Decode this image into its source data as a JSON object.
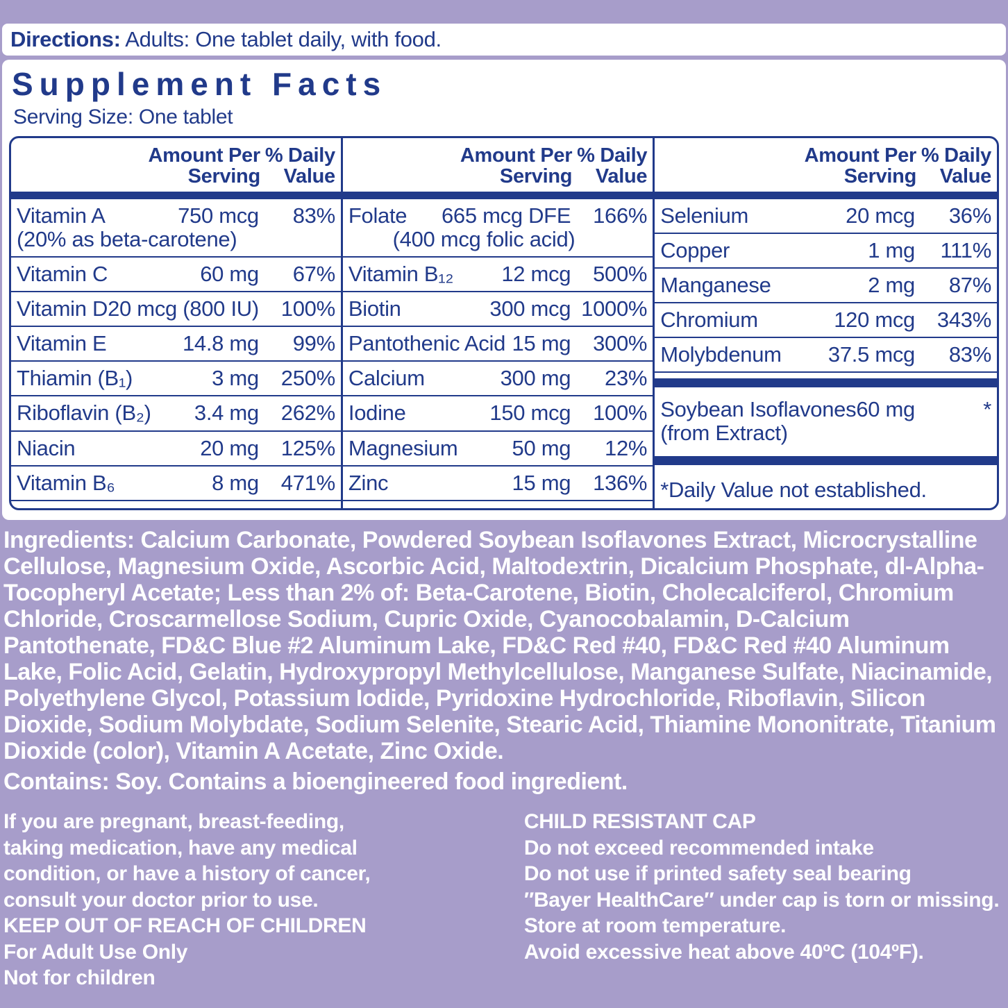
{
  "colors": {
    "background": "#a79dca",
    "panel": "#ffffff",
    "ink": "#213a8a",
    "text_on_purple": "#ffffff"
  },
  "directions": {
    "label": "Directions:",
    "text": " Adults: One tablet daily, with food."
  },
  "facts": {
    "title": "Supplement Facts",
    "serving_size": "Serving Size: One tablet",
    "col_header_amount": "Amount Per\nServing",
    "col_header_dv": "% Daily\nValue",
    "columns": [
      {
        "rows": [
          {
            "name": "Vitamin A",
            "name2": "(20% as beta-carotene)",
            "amount": "750 mcg",
            "dv": "83%"
          },
          {
            "name": "Vitamin C",
            "amount": "60 mg",
            "dv": "67%"
          },
          {
            "name": "Vitamin D",
            "amount": "20 mcg (800 IU)",
            "dv": "100%"
          },
          {
            "name": "Vitamin E",
            "amount": "14.8 mg",
            "dv": "99%"
          },
          {
            "name": "Thiamin (B₁)",
            "amount": "3 mg",
            "dv": "250%"
          },
          {
            "name": "Riboflavin (B₂)",
            "amount": "3.4 mg",
            "dv": "262%"
          },
          {
            "name": "Niacin",
            "amount": "20 mg",
            "dv": "125%"
          },
          {
            "name": "Vitamin B₆",
            "amount": "8 mg",
            "dv": "471%"
          }
        ]
      },
      {
        "rows": [
          {
            "name": "Folate",
            "amount": "665 mcg DFE",
            "amount2": "(400 mcg folic acid)",
            "dv": "166%"
          },
          {
            "name": "Vitamin B₁₂",
            "amount": "12 mcg",
            "dv": "500%"
          },
          {
            "name": "Biotin",
            "amount": "300 mcg",
            "dv": "1000%"
          },
          {
            "name": "Pantothenic Acid",
            "amount": "15 mg",
            "dv": "300%"
          },
          {
            "name": "Calcium",
            "amount": "300 mg",
            "dv": "23%"
          },
          {
            "name": "Iodine",
            "amount": "150 mcg",
            "dv": "100%"
          },
          {
            "name": "Magnesium",
            "amount": "50 mg",
            "dv": "12%"
          },
          {
            "name": "Zinc",
            "amount": "15 mg",
            "dv": "136%"
          }
        ]
      },
      {
        "rows": [
          {
            "name": "Selenium",
            "amount": "20 mcg",
            "dv": "36%"
          },
          {
            "name": "Copper",
            "amount": "1 mg",
            "dv": "111%"
          },
          {
            "name": "Manganese",
            "amount": "2 mg",
            "dv": "87%"
          },
          {
            "name": "Chromium",
            "amount": "120 mcg",
            "dv": "343%"
          },
          {
            "name": "Molybdenum",
            "amount": "37.5 mcg",
            "dv": "83%"
          }
        ],
        "special_row": {
          "name": "Soybean Isoflavones",
          "name2": "(from Extract)",
          "amount": "60 mg",
          "dv": "*"
        },
        "footnote": "*Daily Value not established."
      }
    ]
  },
  "ingredients": {
    "label": "Ingredients:",
    "text": " Calcium Carbonate, Powdered Soybean Isoflavones Extract, Microcrystalline Cellulose, Magnesium Oxide, Ascorbic Acid, Maltodextrin, Dicalcium Phosphate, dl-Alpha-Tocopheryl Acetate; Less than 2% of: Beta-Carotene, Biotin, Cholecalciferol, Chromium Chloride, Croscarmellose Sodium, Cupric Oxide, Cyanocobalamin, D-Calcium Pantothenate, FD&C Blue #2 Aluminum Lake, FD&C Red #40, FD&C Red #40 Aluminum Lake, Folic Acid, Gelatin, Hydroxypropyl Methylcellulose, Manganese Sulfate, Niacinamide, Polyethylene Glycol, Potassium Iodide, Pyridoxine Hydrochloride, Riboflavin, Silicon Dioxide, Sodium Molybdate, Sodium Selenite, Stearic Acid, Thiamine Mononitrate, Titanium Dioxide (color), Vitamin A Acetate, Zinc Oxide."
  },
  "contains": {
    "label": "Contains:",
    "text": " Soy.  Contains a bioengineered food ingredient."
  },
  "warnings_left": {
    "lines": [
      "If you are pregnant, breast-feeding,",
      "taking medication, have any medical",
      "condition, or have a history of cancer,",
      "consult your doctor prior to use.",
      "KEEP OUT OF REACH OF CHILDREN",
      "For Adult Use Only",
      "Not for children"
    ]
  },
  "warnings_right": {
    "lines": [
      "CHILD RESISTANT CAP",
      "Do not exceed recommended intake",
      "Do not use if printed safety seal bearing",
      "″Bayer HealthCare″ under cap is torn or missing.",
      "Store at room temperature.",
      "Avoid excessive heat above 40ºC (104ºF)."
    ]
  }
}
